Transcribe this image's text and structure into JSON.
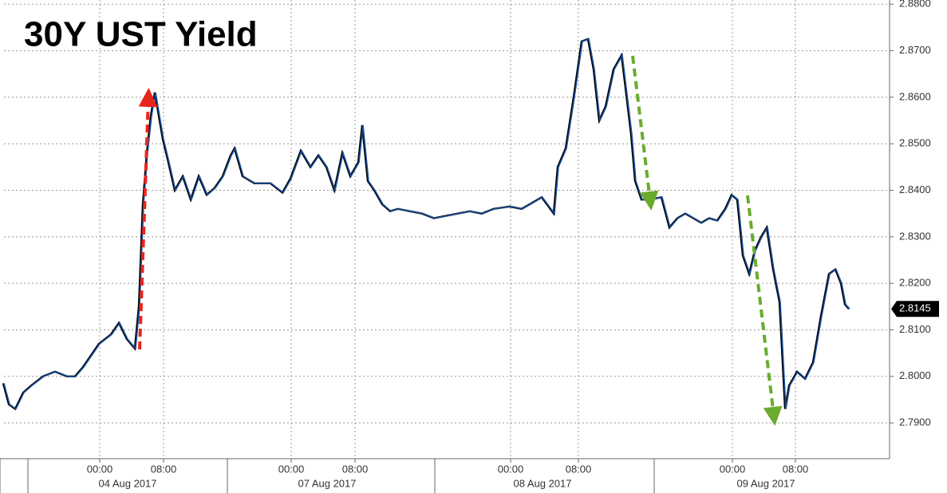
{
  "chart_data": {
    "type": "line",
    "title": "30Y UST Yield",
    "x": [
      0,
      0.7,
      1.5,
      2.5,
      3.5,
      5,
      6.5,
      8,
      9,
      10,
      11,
      12,
      13.5,
      14.5,
      15.5,
      16.5,
      17,
      17.5,
      18,
      18.5,
      19,
      19.5,
      20,
      20.7,
      21.5,
      22.5,
      23.5,
      24.5,
      25.5,
      26.5,
      27.5,
      28.5,
      29,
      30,
      31.5,
      33.5,
      35,
      36,
      37.3,
      38.5,
      39.5,
      40.5,
      41.5,
      42.5,
      43.5,
      44.5,
      45,
      45.7,
      46.5,
      47.5,
      48.5,
      49.5,
      51,
      52.5,
      54,
      55.5,
      57,
      58.5,
      60,
      61.5,
      63.5,
      65,
      66,
      67.5,
      69,
      69.5,
      70.5,
      71.5,
      72.5,
      73.3,
      74,
      74.7,
      75.5,
      76.5,
      77.5,
      78,
      78.7,
      79.2,
      80,
      81,
      82.5,
      83.5,
      84.5,
      85.5,
      86.5,
      87.5,
      88.5,
      89.5,
      90.5,
      91.3,
      92,
      92.7,
      93.5,
      94.2,
      95,
      95.7,
      96.5,
      97.3,
      98,
      98.5,
      99.5,
      100.5,
      101.5,
      102.5,
      103.5,
      104.3,
      105,
      105.5,
      106
    ],
    "values": [
      2.7985,
      2.794,
      2.793,
      2.7965,
      2.798,
      2.8,
      2.801,
      2.8,
      2.8,
      2.802,
      2.8045,
      2.807,
      2.809,
      2.8115,
      2.808,
      2.806,
      2.815,
      2.837,
      2.848,
      2.856,
      2.861,
      2.856,
      2.851,
      2.846,
      2.84,
      2.843,
      2.838,
      2.843,
      2.839,
      2.8405,
      2.843,
      2.8475,
      2.849,
      2.843,
      2.8415,
      2.8415,
      2.8395,
      2.8425,
      2.8485,
      2.845,
      2.8475,
      2.845,
      2.84,
      2.848,
      2.843,
      2.846,
      2.854,
      2.842,
      2.84,
      2.837,
      2.8355,
      2.836,
      2.8355,
      2.835,
      2.834,
      2.8345,
      2.835,
      2.8355,
      2.835,
      2.836,
      2.8365,
      2.836,
      2.837,
      2.8385,
      2.835,
      2.845,
      2.849,
      2.86,
      2.872,
      2.8725,
      2.866,
      2.855,
      2.858,
      2.866,
      2.869,
      2.862,
      2.852,
      2.842,
      2.838,
      2.838,
      2.8385,
      2.832,
      2.834,
      2.835,
      2.834,
      2.833,
      2.834,
      2.8335,
      2.836,
      2.839,
      2.838,
      2.826,
      2.822,
      2.827,
      2.83,
      2.832,
      2.823,
      2.816,
      2.793,
      2.798,
      2.801,
      2.7995,
      2.803,
      2.813,
      2.822,
      2.823,
      2.82,
      2.8155,
      2.8145
    ],
    "color": "#1a4f9a",
    "xlim": [
      0,
      111
    ],
    "xticks": [
      {
        "value": 12,
        "label": "00:00"
      },
      {
        "value": 20,
        "label": "08:00"
      },
      {
        "value": 36,
        "label": "00:00"
      },
      {
        "value": 44,
        "label": "08:00"
      },
      {
        "value": 63.5,
        "label": "00:00"
      },
      {
        "value": 72,
        "label": "08:00"
      },
      {
        "value": 91.3,
        "label": "00:00"
      },
      {
        "value": 99.2,
        "label": "08:00"
      }
    ],
    "date_ticks": [
      {
        "value": 15.5,
        "label": "04 Aug 2017"
      },
      {
        "value": 40.5,
        "label": "07 Aug 2017"
      },
      {
        "value": 67.5,
        "label": "08 Aug 2017"
      },
      {
        "value": 95.5,
        "label": "09 Aug 2017"
      }
    ],
    "ylim": [
      2.7823,
      2.8809
    ],
    "yticks": [
      {
        "value": 2.79,
        "label": "2.7900"
      },
      {
        "value": 2.8,
        "label": "2.8000"
      },
      {
        "value": 2.81,
        "label": "2.8100"
      },
      {
        "value": 2.82,
        "label": "2.8200"
      },
      {
        "value": 2.83,
        "label": "2.8300"
      },
      {
        "value": 2.84,
        "label": "2.8400"
      },
      {
        "value": 2.85,
        "label": "2.8500"
      },
      {
        "value": 2.86,
        "label": "2.8600"
      },
      {
        "value": 2.87,
        "label": "2.8700"
      },
      {
        "value": 2.88,
        "label": "2.8800"
      }
    ],
    "last_price": 2.8145,
    "grid": true
  }
}
